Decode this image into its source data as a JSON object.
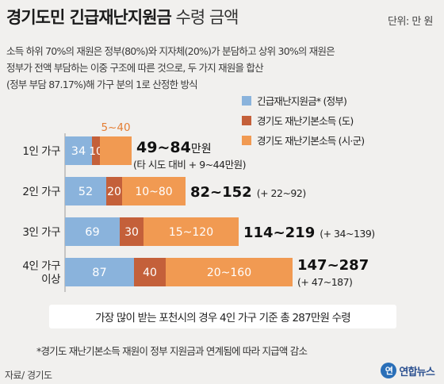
{
  "header": {
    "title_bold": "경기도민 긴급재난지원금",
    "title_light": "수령 금액",
    "unit": "단위: 만 원"
  },
  "note": {
    "line1": "소득 하위 70%의 재원은 정부(80%)와 지자체(20%)가 분담하고 상위 30%의 재원은",
    "line2": "정부가 전액 부담하는 이중 구조에 따른 것으로, 두 가지 재원을 합산",
    "line3": "(정부 부담 87.17%)해 가구 분의 1로 산정한 방식"
  },
  "colors": {
    "gov": "#8ab3dc",
    "gg": "#c4603a",
    "city": "#f19a52"
  },
  "chart_data": {
    "type": "bar",
    "orientation": "horizontal",
    "stacked": true,
    "categories": [
      "1인 가구",
      "2인 가구",
      "3인 가구",
      "4인 가구 이상"
    ],
    "category_lines": [
      [
        "1인 가구"
      ],
      [
        "2인 가구"
      ],
      [
        "3인 가구"
      ],
      [
        "4인 가구",
        "이상"
      ]
    ],
    "series": [
      {
        "name": "긴급재난지원금* (정부)",
        "values": [
          34,
          52,
          69,
          87
        ],
        "labels": [
          "34",
          "52",
          "69",
          "87"
        ],
        "color": "#8ab3dc"
      },
      {
        "name": "경기도 재난기본소득 (도)",
        "values": [
          10,
          20,
          30,
          40
        ],
        "labels": [
          "10",
          "20",
          "30",
          "40"
        ],
        "color": "#c4603a"
      },
      {
        "name": "경기도 재난기본소득 (시·군)",
        "values": [
          40,
          80,
          120,
          160
        ],
        "min_values": [
          5,
          10,
          15,
          20
        ],
        "labels": [
          "5~40",
          "10~80",
          "15~120",
          "20~160"
        ],
        "color": "#f19a52"
      }
    ],
    "totals": [
      "49~84",
      "82~152",
      "114~219",
      "147~287"
    ],
    "total_unit": "만원",
    "extras": [
      "(타 시도 대비 + 9~44만원)",
      "(+ 22~92)",
      "(+ 34~139)",
      "(+ 47~187)"
    ],
    "legend_position": "top-right",
    "xlim": [
      0,
      287
    ],
    "grid": false
  },
  "summary": "가장 많이 받는 포천시의 경우 4인 가구 기준 총 287만원 수령",
  "footnote": "*경기도 재난기본소득 재원이 정부 지원금과 연계됨에 따라 지급액 감소",
  "source": "자료/ 경기도",
  "brand": {
    "badge": "연",
    "name": "연합뉴스"
  }
}
